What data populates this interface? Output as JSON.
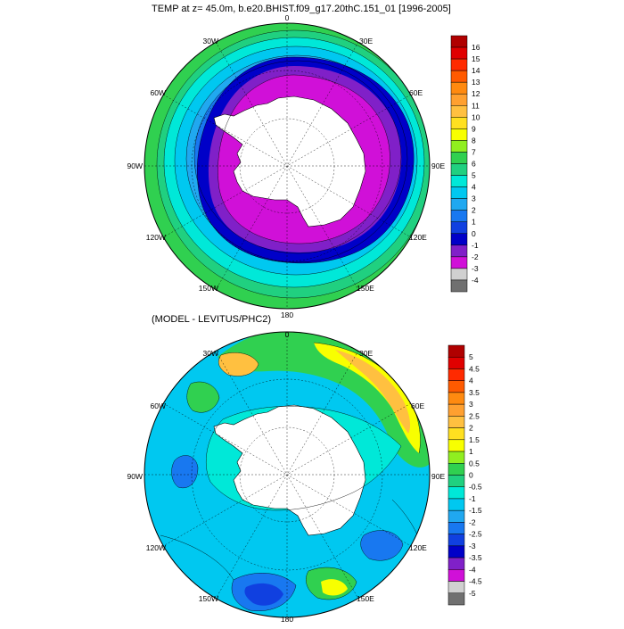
{
  "top_panel": {
    "title": "TEMP at z=  45.0m, b.e20.BHIST.f09_g17.20thC.151_01 [1996-2005]",
    "lon_labels": [
      "0",
      "30E",
      "60E",
      "90E",
      "120E",
      "150E",
      "180",
      "150W",
      "120W",
      "90W",
      "60W",
      "30W"
    ],
    "colorbar": {
      "labels": [
        "16",
        "15",
        "14",
        "13",
        "12",
        "11",
        "10",
        "9",
        "8",
        "7",
        "6",
        "5",
        "4",
        "3",
        "2",
        "1",
        "0",
        "-1",
        "-2",
        "-3",
        "-4"
      ],
      "colors": [
        "#b00000",
        "#e00000",
        "#ff2a00",
        "#ff5a00",
        "#ff8a10",
        "#ffa030",
        "#ffc040",
        "#ffe020",
        "#f8ff00",
        "#90ee20",
        "#30d050",
        "#20d080",
        "#00e8d8",
        "#00c8f0",
        "#20a8f0",
        "#1878f0",
        "#1040e0",
        "#0000c8",
        "#8020c8",
        "#d010d8",
        "#d0d0d0",
        "#707070"
      ]
    }
  },
  "bottom_panel": {
    "title": "(MODEL - LEVITUS/PHC2)",
    "lon_labels": [
      "0",
      "30E",
      "60E",
      "90E",
      "120E",
      "150E",
      "180",
      "150W",
      "120W",
      "90W",
      "60W",
      "30W"
    ],
    "colorbar": {
      "labels": [
        "5",
        "4.5",
        "4",
        "3.5",
        "3",
        "2.5",
        "2",
        "1.5",
        "1",
        "0.5",
        "0",
        "-0.5",
        "-1",
        "-1.5",
        "-2",
        "-2.5",
        "-3",
        "-3.5",
        "-4",
        "-4.5",
        "-5"
      ],
      "colors": [
        "#b00000",
        "#e00000",
        "#ff2a00",
        "#ff5a00",
        "#ff8a10",
        "#ffa030",
        "#ffc040",
        "#ffe020",
        "#f8ff00",
        "#90ee20",
        "#30d050",
        "#20d080",
        "#00e8d8",
        "#00c8f0",
        "#20a8f0",
        "#1878f0",
        "#1040e0",
        "#0000c8",
        "#8020c8",
        "#d010d8",
        "#d0d0d0",
        "#707070"
      ]
    }
  },
  "colors": {
    "land": "#ffffff",
    "ice_shelf_purple": "#d010d8",
    "deep_purple": "#8020c8",
    "ring_blue": "#0000c8",
    "ocean_light_blue": "#00c8f0",
    "ocean_cyan": "#00e8d8",
    "ocean_green": "#30d050"
  }
}
